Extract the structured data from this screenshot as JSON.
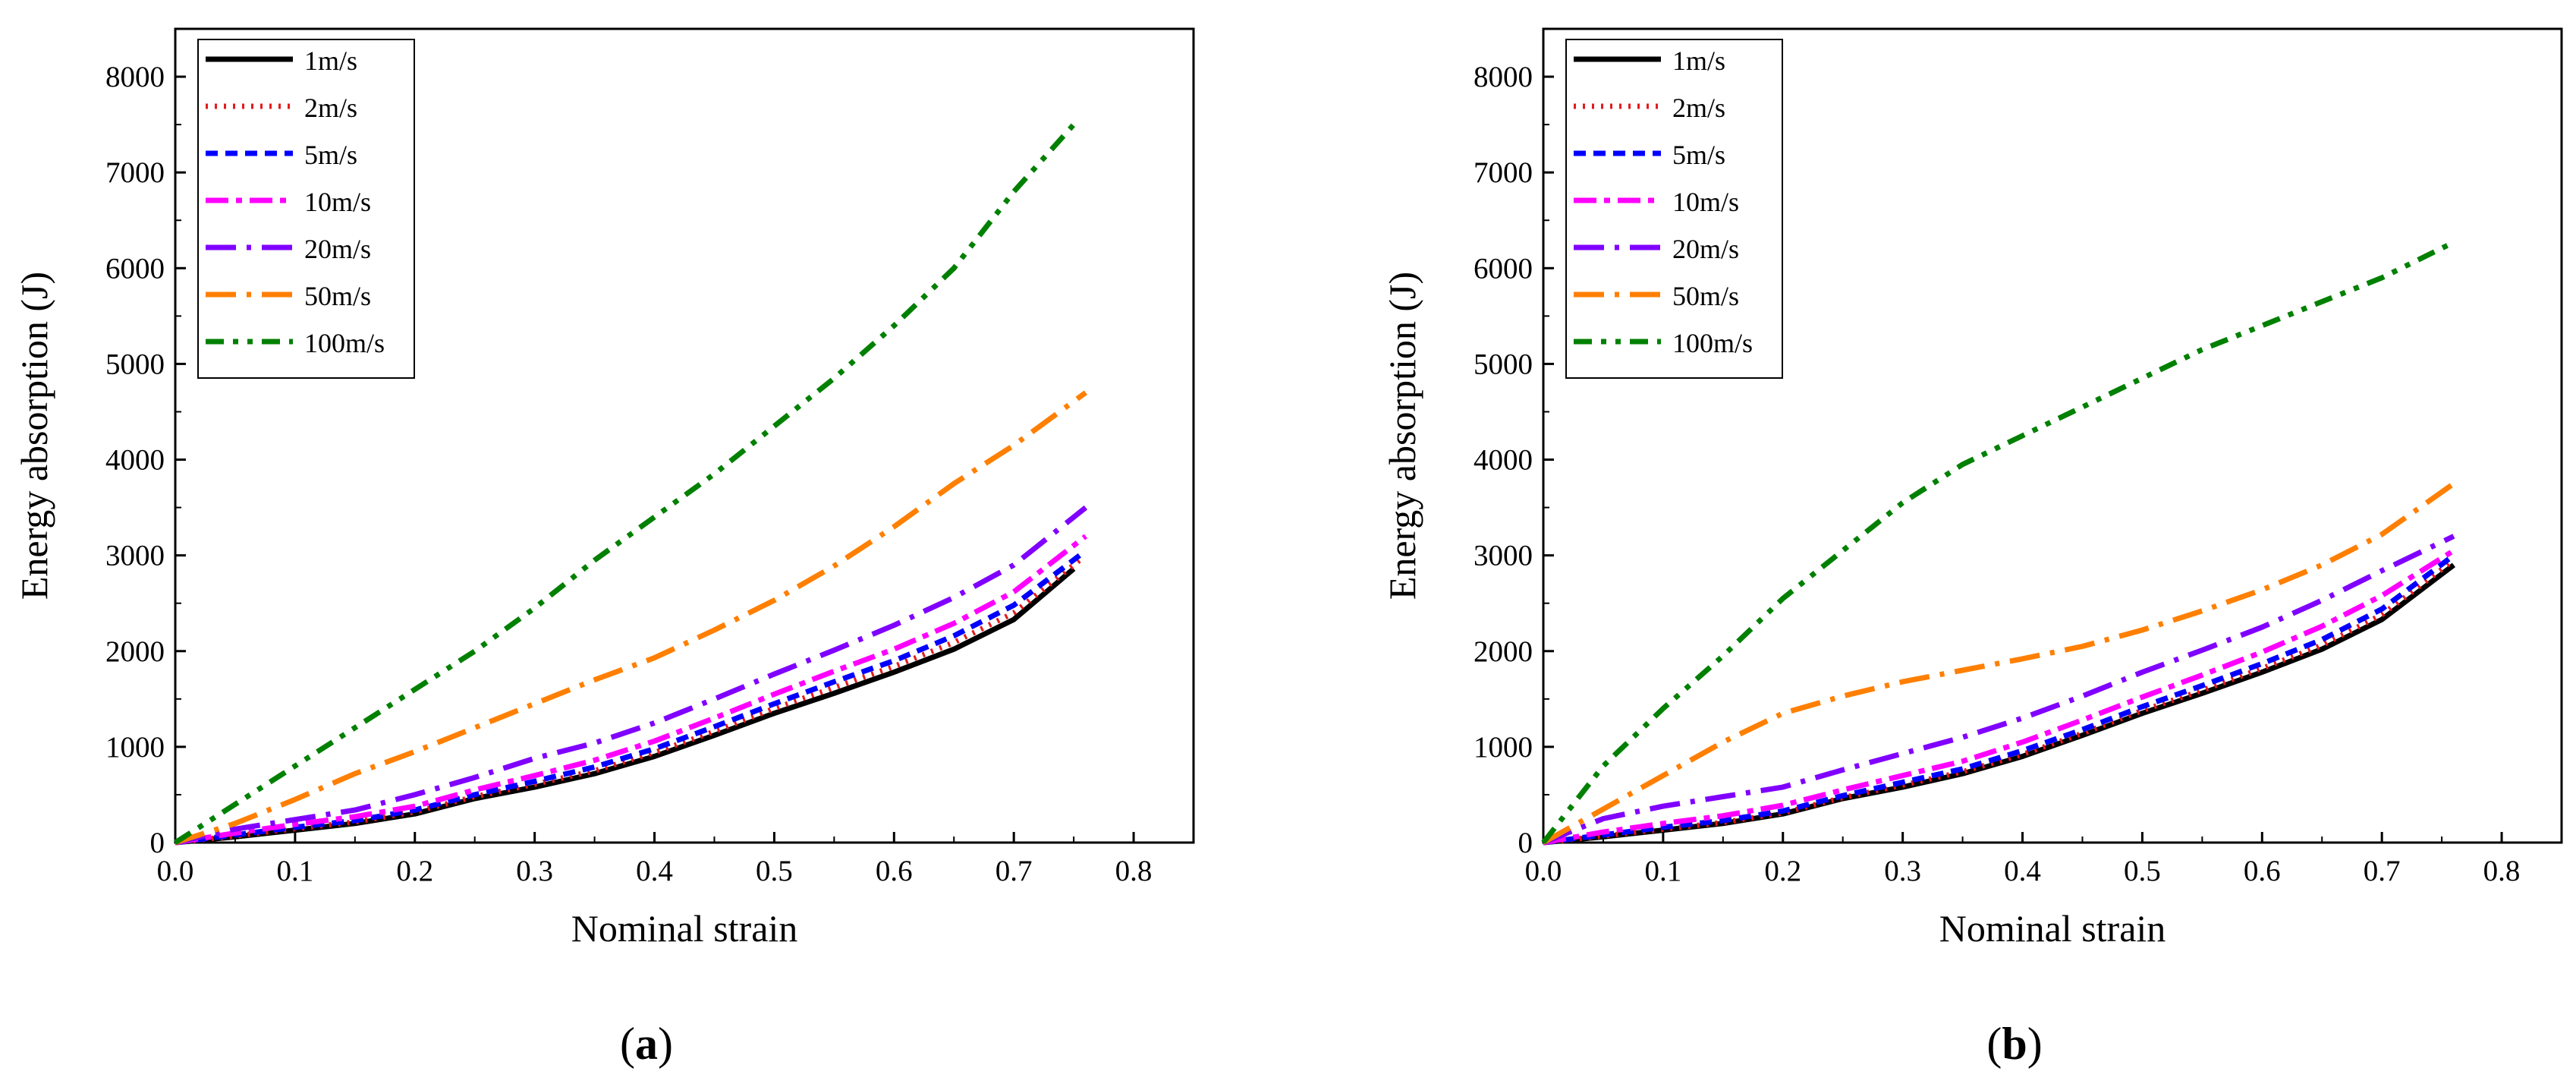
{
  "chart_data": [
    {
      "type": "line",
      "panel": "a",
      "panel_label": {
        "open": "(",
        "letter": "a",
        "close": ")"
      },
      "xlabel": "Nominal strain",
      "ylabel": "Energy absorption (J)",
      "xlim": [
        0,
        0.85
      ],
      "ylim": [
        0,
        8500
      ],
      "xticks": [
        0.0,
        0.1,
        0.2,
        0.3,
        0.4,
        0.5,
        0.6,
        0.7,
        0.8
      ],
      "xtick_labels": [
        "0.0",
        "0.1",
        "0.2",
        "0.3",
        "0.4",
        "0.5",
        "0.6",
        "0.7",
        "0.8"
      ],
      "yticks": [
        0,
        1000,
        2000,
        3000,
        4000,
        5000,
        6000,
        7000,
        8000
      ],
      "ytick_labels": [
        "0",
        "1000",
        "2000",
        "3000",
        "4000",
        "5000",
        "6000",
        "7000",
        "8000"
      ],
      "legend_position": "top-left",
      "series": [
        {
          "name": "1m/s",
          "color": "#000000",
          "dash": "solid",
          "x": [
            0,
            0.05,
            0.1,
            0.15,
            0.2,
            0.25,
            0.3,
            0.35,
            0.4,
            0.45,
            0.5,
            0.55,
            0.6,
            0.65,
            0.7,
            0.75
          ],
          "y": [
            0,
            60,
            130,
            200,
            300,
            460,
            580,
            720,
            900,
            1120,
            1350,
            1560,
            1780,
            2020,
            2330,
            2860
          ]
        },
        {
          "name": "2m/s",
          "color": "#e41a1c",
          "dash": "dot",
          "x": [
            0,
            0.05,
            0.1,
            0.15,
            0.2,
            0.25,
            0.3,
            0.35,
            0.4,
            0.45,
            0.5,
            0.55,
            0.6,
            0.65,
            0.7,
            0.755
          ],
          "y": [
            0,
            70,
            145,
            215,
            320,
            480,
            610,
            750,
            940,
            1160,
            1400,
            1620,
            1840,
            2090,
            2400,
            2950
          ]
        },
        {
          "name": "5m/s",
          "color": "#0000ff",
          "dash": "short-dash",
          "x": [
            0,
            0.05,
            0.1,
            0.15,
            0.2,
            0.25,
            0.3,
            0.35,
            0.4,
            0.45,
            0.5,
            0.55,
            0.6,
            0.65,
            0.7,
            0.755
          ],
          "y": [
            0,
            80,
            160,
            230,
            340,
            500,
            640,
            790,
            980,
            1210,
            1450,
            1680,
            1900,
            2160,
            2480,
            3000
          ]
        },
        {
          "name": "10m/s",
          "color": "#ff00ff",
          "dash": "dash-dot",
          "x": [
            0,
            0.05,
            0.1,
            0.15,
            0.2,
            0.25,
            0.3,
            0.35,
            0.4,
            0.45,
            0.5,
            0.55,
            0.6,
            0.65,
            0.7,
            0.76
          ],
          "y": [
            0,
            100,
            190,
            270,
            380,
            550,
            700,
            860,
            1060,
            1300,
            1550,
            1790,
            2020,
            2290,
            2620,
            3200
          ]
        },
        {
          "name": "20m/s",
          "color": "#8000ff",
          "dash": "long-dash-dot",
          "x": [
            0,
            0.05,
            0.1,
            0.15,
            0.2,
            0.25,
            0.3,
            0.35,
            0.4,
            0.45,
            0.5,
            0.55,
            0.6,
            0.65,
            0.7,
            0.76
          ],
          "y": [
            0,
            140,
            240,
            340,
            500,
            680,
            880,
            1040,
            1250,
            1500,
            1760,
            2010,
            2270,
            2560,
            2900,
            3500
          ]
        },
        {
          "name": "50m/s",
          "color": "#ff7f00",
          "dash": "long-dash-dot",
          "x": [
            0,
            0.05,
            0.1,
            0.15,
            0.2,
            0.25,
            0.3,
            0.35,
            0.4,
            0.45,
            0.5,
            0.55,
            0.6,
            0.65,
            0.7,
            0.76
          ],
          "y": [
            0,
            200,
            450,
            720,
            950,
            1200,
            1450,
            1700,
            1930,
            2220,
            2530,
            2890,
            3300,
            3750,
            4150,
            4700
          ]
        },
        {
          "name": "100m/s",
          "color": "#008000",
          "dash": "dash-dot-dot",
          "x": [
            0,
            0.05,
            0.1,
            0.15,
            0.2,
            0.25,
            0.3,
            0.35,
            0.4,
            0.45,
            0.5,
            0.55,
            0.6,
            0.65,
            0.7,
            0.75
          ],
          "y": [
            0,
            400,
            800,
            1200,
            1600,
            2000,
            2450,
            2950,
            3400,
            3850,
            4350,
            4850,
            5400,
            6000,
            6800,
            7500
          ]
        }
      ]
    },
    {
      "type": "line",
      "panel": "b",
      "panel_label": {
        "open": "(",
        "letter": "b",
        "close": ")"
      },
      "xlabel": "Nominal strain",
      "ylabel": "Energy absorption (J)",
      "xlim": [
        0,
        0.85
      ],
      "ylim": [
        0,
        8500
      ],
      "xticks": [
        0.0,
        0.1,
        0.2,
        0.3,
        0.4,
        0.5,
        0.6,
        0.7,
        0.8
      ],
      "xtick_labels": [
        "0.0",
        "0.1",
        "0.2",
        "0.3",
        "0.4",
        "0.5",
        "0.6",
        "0.7",
        "0.8"
      ],
      "yticks": [
        0,
        1000,
        2000,
        3000,
        4000,
        5000,
        6000,
        7000,
        8000
      ],
      "ytick_labels": [
        "0",
        "1000",
        "2000",
        "3000",
        "4000",
        "5000",
        "6000",
        "7000",
        "8000"
      ],
      "legend_position": "top-left",
      "series": [
        {
          "name": "1m/s",
          "color": "#000000",
          "dash": "solid",
          "x": [
            0,
            0.05,
            0.1,
            0.15,
            0.2,
            0.25,
            0.3,
            0.35,
            0.4,
            0.45,
            0.5,
            0.55,
            0.6,
            0.65,
            0.7,
            0.76
          ],
          "y": [
            0,
            60,
            130,
            200,
            300,
            460,
            580,
            720,
            900,
            1120,
            1350,
            1560,
            1780,
            2020,
            2330,
            2900
          ]
        },
        {
          "name": "2m/s",
          "color": "#e41a1c",
          "dash": "dot",
          "x": [
            0,
            0.05,
            0.1,
            0.15,
            0.2,
            0.25,
            0.3,
            0.35,
            0.4,
            0.45,
            0.5,
            0.55,
            0.6,
            0.65,
            0.7,
            0.76
          ],
          "y": [
            0,
            70,
            140,
            210,
            310,
            470,
            600,
            740,
            920,
            1140,
            1380,
            1590,
            1820,
            2060,
            2380,
            2950
          ]
        },
        {
          "name": "5m/s",
          "color": "#0000ff",
          "dash": "short-dash",
          "x": [
            0,
            0.05,
            0.1,
            0.15,
            0.2,
            0.25,
            0.3,
            0.35,
            0.4,
            0.45,
            0.5,
            0.55,
            0.6,
            0.65,
            0.7,
            0.76
          ],
          "y": [
            0,
            80,
            160,
            230,
            330,
            490,
            630,
            770,
            960,
            1180,
            1420,
            1640,
            1870,
            2120,
            2440,
            3000
          ]
        },
        {
          "name": "10m/s",
          "color": "#ff00ff",
          "dash": "dash-dot",
          "x": [
            0,
            0.05,
            0.1,
            0.15,
            0.2,
            0.25,
            0.3,
            0.35,
            0.4,
            0.45,
            0.5,
            0.55,
            0.6,
            0.65,
            0.7,
            0.76
          ],
          "y": [
            0,
            110,
            200,
            280,
            390,
            550,
            700,
            850,
            1050,
            1280,
            1520,
            1750,
            1990,
            2260,
            2580,
            3050
          ]
        },
        {
          "name": "20m/s",
          "color": "#8000ff",
          "dash": "long-dash-dot",
          "x": [
            0,
            0.05,
            0.1,
            0.15,
            0.2,
            0.25,
            0.3,
            0.35,
            0.4,
            0.45,
            0.5,
            0.55,
            0.6,
            0.65,
            0.7,
            0.76
          ],
          "y": [
            0,
            250,
            380,
            480,
            580,
            760,
            930,
            1100,
            1300,
            1530,
            1780,
            2010,
            2250,
            2530,
            2840,
            3200
          ]
        },
        {
          "name": "50m/s",
          "color": "#ff7f00",
          "dash": "long-dash-dot",
          "x": [
            0,
            0.05,
            0.1,
            0.15,
            0.2,
            0.25,
            0.3,
            0.35,
            0.4,
            0.45,
            0.5,
            0.55,
            0.6,
            0.65,
            0.7,
            0.76
          ],
          "y": [
            0,
            350,
            700,
            1050,
            1350,
            1530,
            1680,
            1800,
            1920,
            2050,
            2220,
            2420,
            2640,
            2900,
            3220,
            3750
          ]
        },
        {
          "name": "100m/s",
          "color": "#008000",
          "dash": "dash-dot-dot",
          "x": [
            0,
            0.05,
            0.1,
            0.15,
            0.2,
            0.25,
            0.3,
            0.35,
            0.4,
            0.45,
            0.5,
            0.55,
            0.6,
            0.65,
            0.7,
            0.76
          ],
          "y": [
            0,
            800,
            1400,
            1950,
            2550,
            3050,
            3550,
            3950,
            4250,
            4550,
            4850,
            5150,
            5400,
            5650,
            5900,
            6270
          ]
        }
      ]
    }
  ]
}
